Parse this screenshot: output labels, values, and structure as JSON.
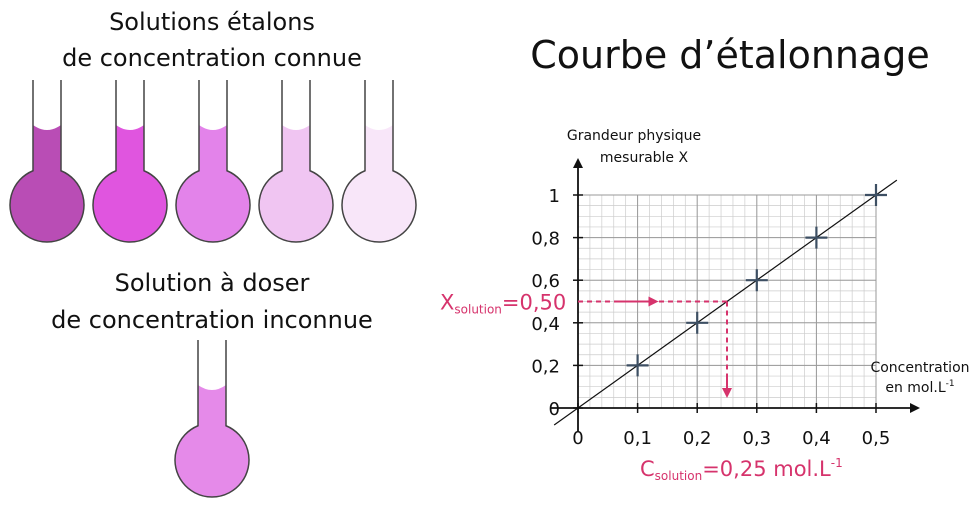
{
  "illustration": {
    "standards_title": [
      "Solutions étalons",
      "de concentration connue"
    ],
    "standard_colors": [
      "#b94db5",
      "#e055df",
      "#e383ea",
      "#f0c5f2",
      "#f8e6f9"
    ],
    "unknown_title": [
      "Solution à doser",
      "de concentration inconnue"
    ],
    "unknown_color": "#e58ae9"
  },
  "chart_data": {
    "type": "scatter",
    "title": "Courbe d’étalonnage",
    "y_label": [
      "Grandeur physique",
      "mesurable X"
    ],
    "x_label": {
      "line1": "Concentration",
      "line2": "en mol.L",
      "sup": "-1"
    },
    "series": [
      {
        "name": "Solutions étalons",
        "color": "#3d4f63",
        "x": [
          0.1,
          0.2,
          0.3,
          0.4,
          0.5
        ],
        "values": [
          0.2,
          0.4,
          0.6,
          0.8,
          1
        ]
      }
    ],
    "xlim": [
      0,
      0.5
    ],
    "ylim": [
      0,
      1
    ],
    "xticks": [
      0,
      {
        "value": 0.1,
        "label": "0,1"
      },
      {
        "value": 0.2,
        "label": "0,2"
      },
      {
        "value": 0.3,
        "label": "0,3"
      },
      {
        "value": 0.4,
        "label": "0,4"
      },
      {
        "value": 0.5,
        "label": "0,5"
      }
    ],
    "yticks": [
      0,
      {
        "value": 0.2,
        "label": "0,2"
      },
      {
        "value": 0.4,
        "label": "0,4"
      },
      {
        "value": 0.6,
        "label": "0,6"
      },
      {
        "value": 0.8,
        "label": "0,8"
      },
      1
    ],
    "grid": true,
    "annotation": {
      "color": "#d6336c",
      "x": 0.25,
      "y": 0.5,
      "y_text": {
        "main": "X",
        "sub": "solution",
        "rest": "=0,50"
      },
      "x_text": {
        "main": "C",
        "sub": "solution",
        "rest": "=0,25 mol.L",
        "sup": "-1"
      }
    }
  }
}
